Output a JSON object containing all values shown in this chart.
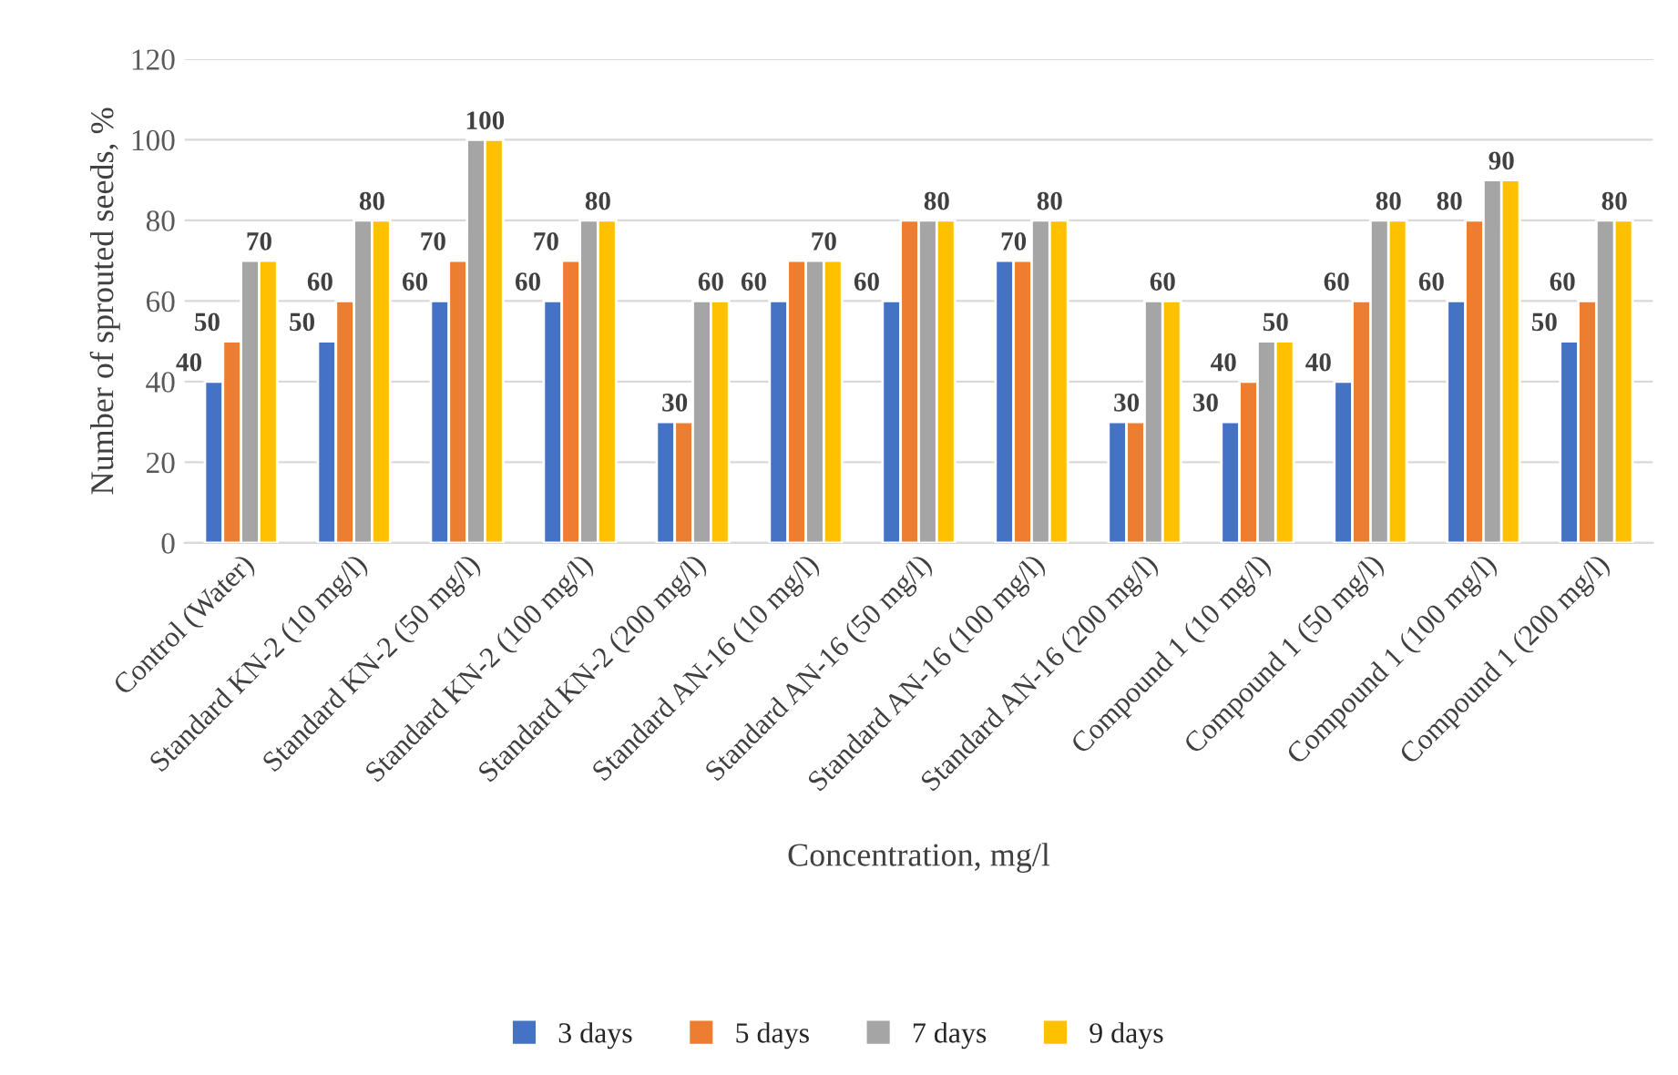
{
  "chart_data": {
    "type": "bar",
    "xlabel": "Concentration, mg/l",
    "ylabel": "Number of sprouted seeds, %",
    "categories": [
      "Control (Water)",
      "Standard KN-2 (10 mg/l)",
      "Standard KN-2 (50 mg/l)",
      "Standard KN-2 (100 mg/l)",
      "Standard KN-2 (200 mg/l)",
      "Standard AN-16 (10 mg/l)",
      "Standard AN-16 (50 mg/l)",
      "Standard AN-16 (100 mg/l)",
      "Standard AN-16 (200 mg/l)",
      "Compound 1 (10 mg/l)",
      "Compound 1 (50 mg/l)",
      "Compound 1 (100 mg/l)",
      "Compound 1 (200 mg/l)"
    ],
    "series": [
      {
        "name": "3 days",
        "color": "#4472c4",
        "values": [
          40,
          50,
          60,
          60,
          30,
          60,
          60,
          70,
          30,
          30,
          40,
          60,
          50
        ],
        "value_labels": [
          "40",
          "50",
          "60",
          "60",
          "30",
          "60",
          "60",
          "70",
          "30",
          "30",
          "40",
          "60",
          "50"
        ]
      },
      {
        "name": "5 days",
        "color": "#ed7d31",
        "values": [
          50,
          60,
          70,
          70,
          30,
          70,
          80,
          70,
          30,
          40,
          60,
          80,
          60
        ],
        "value_labels": [
          "50",
          "60",
          "70",
          "70",
          null,
          null,
          null,
          null,
          null,
          "40",
          "60",
          "80",
          "60"
        ]
      },
      {
        "name": "7 days",
        "color": "#a5a5a5",
        "values": [
          70,
          80,
          100,
          80,
          60,
          70,
          80,
          80,
          60,
          50,
          80,
          90,
          80
        ],
        "value_labels": [
          "70",
          "80",
          "100",
          "80",
          "60",
          "70",
          "80",
          "80",
          "60",
          "50",
          "80",
          "90",
          "80"
        ]
      },
      {
        "name": "9 days",
        "color": "#ffc000",
        "values": [
          70,
          80,
          100,
          80,
          60,
          70,
          80,
          80,
          60,
          50,
          80,
          90,
          80
        ],
        "value_labels": [
          null,
          null,
          null,
          null,
          null,
          null,
          null,
          null,
          null,
          null,
          null,
          null,
          null
        ]
      }
    ],
    "ylim": [
      0,
      120
    ],
    "yticks": [
      0,
      20,
      40,
      60,
      80,
      100,
      120
    ],
    "grid": "y",
    "legend": "bottom"
  }
}
